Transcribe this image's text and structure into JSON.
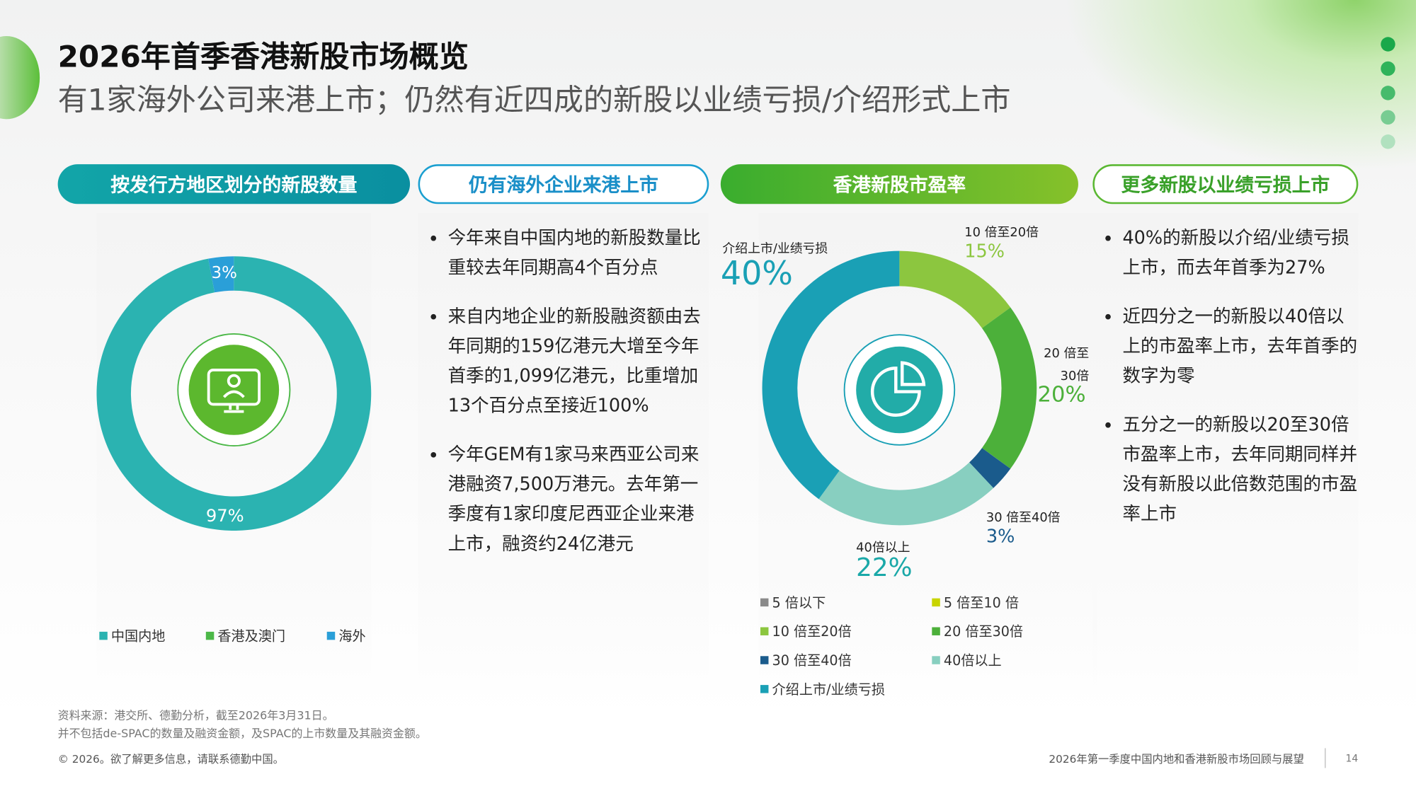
{
  "header": {
    "title": "2026年首季香港新股市场概览",
    "subtitle": "有1家海外公司来港上市；仍然有近四成的新股以业绩亏损/介绍形式上市"
  },
  "sections": [
    {
      "label": "按发行方地区划分的新股数量"
    },
    {
      "label": "仍有海外企业来港上市",
      "bullets": [
        "今年来自中国内地的新股数量比重较去年同期高4个百分点",
        "来自内地企业的新股融资额由去年同期的159亿港元大增至今年首季的1,099亿港元，比重增加13个百分点至接近100%",
        "今年GEM有1家马来西亚公司来港融资7,500万港元。去年第一季度有1家印度尼西亚企业来港上市，融资约24亿港元"
      ]
    },
    {
      "label": "香港新股市盈率"
    },
    {
      "label": "更多新股以业绩亏损上市",
      "bullets": [
        "40%的新股以介绍/业绩亏损上市，而去年首季为27%",
        "近四分之一的新股以40倍以上的市盈率上市，去年首季的数字为零",
        "五分之一的新股以20至30倍市盈率上市，去年同期同样并没有新股以此倍数范围的市盈率上市"
      ]
    }
  ],
  "chart_data": [
    {
      "type": "pie",
      "donut": true,
      "center_icon": "monitor-user-icon",
      "categories": [
        "中国内地",
        "香港及澳门",
        "海外"
      ],
      "values": [
        97,
        0,
        3
      ],
      "labels": [
        "97%",
        "",
        "3%"
      ],
      "colors": [
        "#2bb3b1",
        "#4cb848",
        "#2a9fd8"
      ],
      "legend": "bottom"
    },
    {
      "type": "pie",
      "donut": true,
      "center_icon": "pie-chart-icon",
      "categories": [
        "5 倍以下",
        "5 倍至10 倍",
        "10 倍至20倍",
        "20 倍至30倍",
        "30 倍至40倍",
        "40倍以上",
        "介绍上市/业绩亏损"
      ],
      "values": [
        0,
        0,
        15,
        20,
        3,
        22,
        40
      ],
      "labels": [
        "",
        "",
        "15%",
        "20%",
        "3%",
        "22%",
        "40%"
      ],
      "callouts": [
        "",
        "",
        "10 倍至20倍",
        "20 倍至 30倍",
        "30 倍至40倍",
        "40倍以上",
        "介绍上市/业绩亏损"
      ],
      "colors": [
        "#8a8a8a",
        "#c8d400",
        "#8cc63f",
        "#4cb03a",
        "#1a5b8c",
        "#88cfc0",
        "#1aa0b5"
      ],
      "legend": "bottom"
    }
  ],
  "footer": {
    "source": "资料来源：港交所、德勤分析，截至2026年3月31日。",
    "note": "并不包括de-SPAC的数量及融资金额，及SPAC的上市数量及其融资金额。",
    "copyright": "© 2026。欲了解更多信息，请联系德勤中国。",
    "report": "2026年第一季度中国内地和香港新股市场回顾与展望",
    "page": "14"
  }
}
